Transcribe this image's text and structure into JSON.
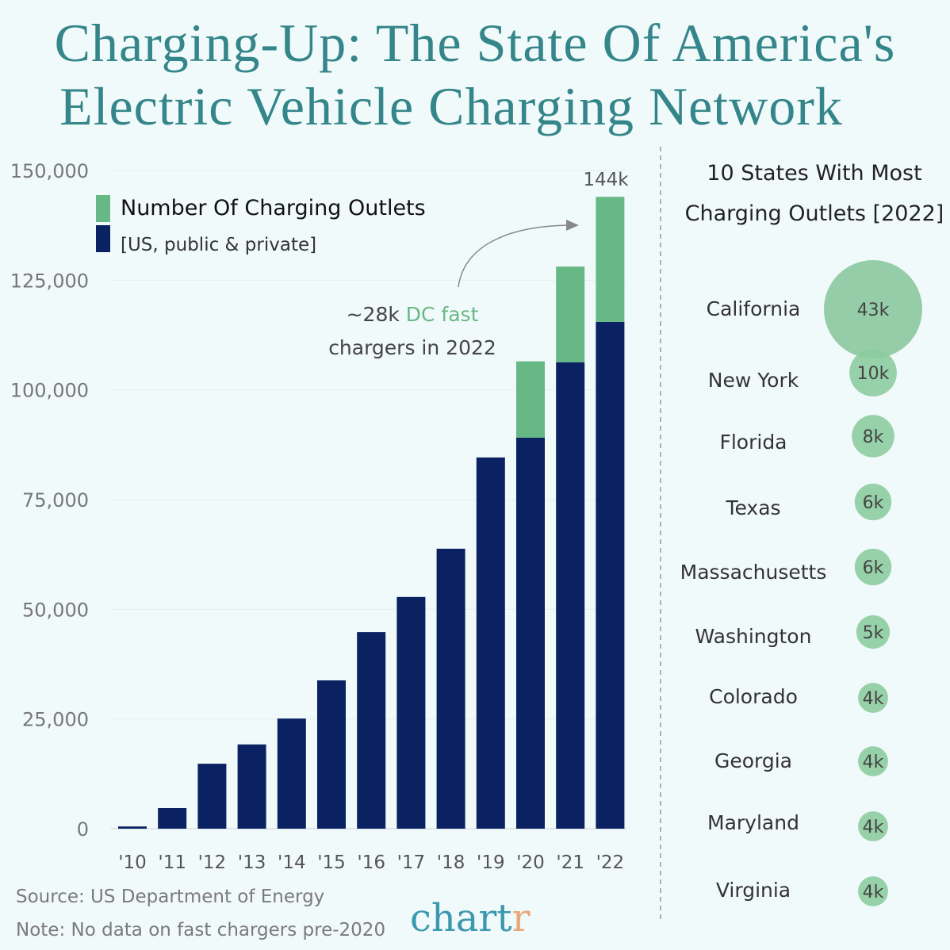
{
  "title_line1": "Charging-Up: The State Of America's",
  "title_line2": "Electric Vehicle Charging Network",
  "source": "Source: US Department of Energy",
  "note": "Note: No data on fast chargers pre-2020",
  "logo": {
    "main": "chart",
    "accent": "r"
  },
  "colors": {
    "title": "#34868a",
    "navy": "#0a2162",
    "green": "#68b885",
    "bubble": "#8ccca0"
  },
  "chart_data": [
    {
      "type": "bar",
      "stacked": true,
      "legend": {
        "title": "Number Of Charging Outlets",
        "subtitle": "[US, public & private]",
        "placement": "top-left"
      },
      "categories": [
        "'10",
        "'11",
        "'12",
        "'13",
        "'14",
        "'15",
        "'16",
        "'17",
        "'18",
        "'19",
        "'20",
        "'21",
        "'22"
      ],
      "series": [
        {
          "values": [
            500,
            4700,
            14800,
            19200,
            25100,
            33800,
            44800,
            52800,
            63800,
            84600,
            89100,
            106300,
            115500
          ]
        },
        {
          "values": [
            0,
            0,
            0,
            0,
            0,
            0,
            0,
            0,
            0,
            0,
            17400,
            21800,
            28500
          ]
        }
      ],
      "ylim": [
        0,
        150000
      ],
      "yticks": [
        "0",
        "25,000",
        "50,000",
        "75,000",
        "100,000",
        "125,000",
        "150,000"
      ],
      "grid": true,
      "annotations": {
        "top_label": "144k",
        "callout_prefix": "~28k ",
        "callout_highlight": "DC fast",
        "callout_line2": "chargers in 2022"
      }
    },
    {
      "type": "bubble",
      "title_line1": "10 States With Most",
      "title_line2": "Charging Outlets [2022]",
      "states": [
        {
          "name": "California",
          "value": 43,
          "label": "43k"
        },
        {
          "name": "New York",
          "value": 10,
          "label": "10k"
        },
        {
          "name": "Florida",
          "value": 8,
          "label": "8k"
        },
        {
          "name": "Texas",
          "value": 6,
          "label": "6k"
        },
        {
          "name": "Massachusetts",
          "value": 6,
          "label": "6k"
        },
        {
          "name": "Washington",
          "value": 5,
          "label": "5k"
        },
        {
          "name": "Colorado",
          "value": 4,
          "label": "4k"
        },
        {
          "name": "Georgia",
          "value": 4,
          "label": "4k"
        },
        {
          "name": "Maryland",
          "value": 4,
          "label": "4k"
        },
        {
          "name": "Virginia",
          "value": 4,
          "label": "4k"
        }
      ]
    }
  ]
}
